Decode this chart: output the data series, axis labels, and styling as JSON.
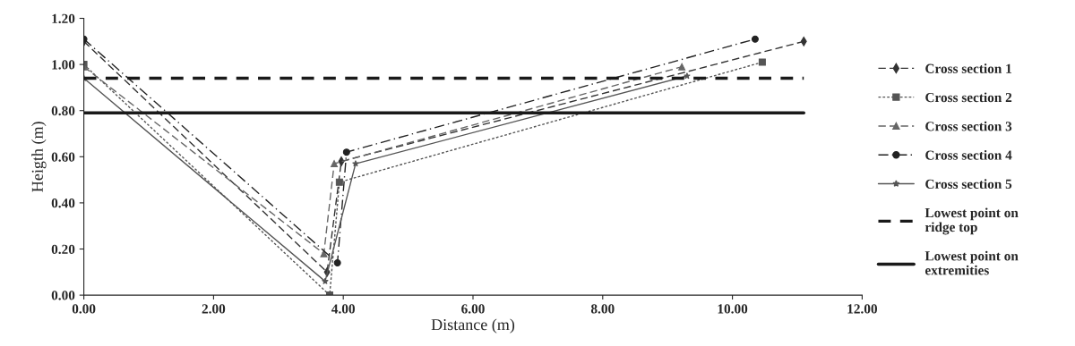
{
  "chart_data": {
    "type": "line",
    "xlabel": "Distance (m)",
    "ylabel": "Heigth (m)",
    "xlim": [
      0,
      12
    ],
    "xticks": [
      {
        "value": 0,
        "label": "0.00"
      },
      {
        "value": 2,
        "label": "2.00"
      },
      {
        "value": 4,
        "label": "4.00"
      },
      {
        "value": 6,
        "label": "6.00"
      },
      {
        "value": 8,
        "label": "8.00"
      },
      {
        "value": 10,
        "label": "10.00"
      },
      {
        "value": 12,
        "label": "12.00"
      }
    ],
    "ylim": [
      0,
      1.2
    ],
    "yticks": [
      {
        "value": 0,
        "label": "0.00"
      },
      {
        "value": 0.2,
        "label": "0.20"
      },
      {
        "value": 0.4,
        "label": "0.40"
      },
      {
        "value": 0.6,
        "label": "0.60"
      },
      {
        "value": 0.8,
        "label": "0.80"
      },
      {
        "value": 1.0,
        "label": "1.00"
      },
      {
        "value": 1.2,
        "label": "1.20"
      }
    ],
    "grid": false,
    "legend": "right",
    "series": [
      {
        "name": "Cross section 1",
        "color": "#333333",
        "marker": "diamond",
        "line_style": "dashed",
        "x": [
          0,
          3.75,
          3.97,
          11.1
        ],
        "values": [
          1.1,
          0.1,
          0.58,
          1.1
        ]
      },
      {
        "name": "Cross section 2",
        "color": "#555555",
        "marker": "square",
        "line_style": "dotted",
        "x": [
          0,
          3.79,
          3.94,
          10.46
        ],
        "values": [
          1.0,
          0.0,
          0.49,
          1.01
        ]
      },
      {
        "name": "Cross section 3",
        "color": "#666666",
        "marker": "triangle",
        "line_style": "dashed",
        "x": [
          0,
          3.7,
          3.86,
          9.22
        ],
        "values": [
          0.99,
          0.18,
          0.57,
          0.99
        ]
      },
      {
        "name": "Cross section 4",
        "color": "#222222",
        "marker": "circle",
        "line_style": "dashdot",
        "x": [
          0,
          3.91,
          4.05,
          10.35
        ],
        "values": [
          1.11,
          0.14,
          0.62,
          1.11
        ]
      },
      {
        "name": "Cross section 5",
        "color": "#555555",
        "marker": "star",
        "line_style": "solid",
        "x": [
          0,
          3.72,
          4.19,
          9.3
        ],
        "values": [
          0.94,
          0.06,
          0.57,
          0.95
        ]
      },
      {
        "name": "Lowest point on ridge top",
        "color": "#1a1a1a",
        "marker": "none",
        "line_style": "dashed",
        "x": [
          0,
          11.1
        ],
        "values": [
          0.94,
          0.94
        ]
      },
      {
        "name": "Lowest point on extremities",
        "color": "#1a1a1a",
        "marker": "none",
        "line_style": "solid",
        "x": [
          0,
          11.1
        ],
        "values": [
          0.79,
          0.79
        ]
      }
    ]
  }
}
